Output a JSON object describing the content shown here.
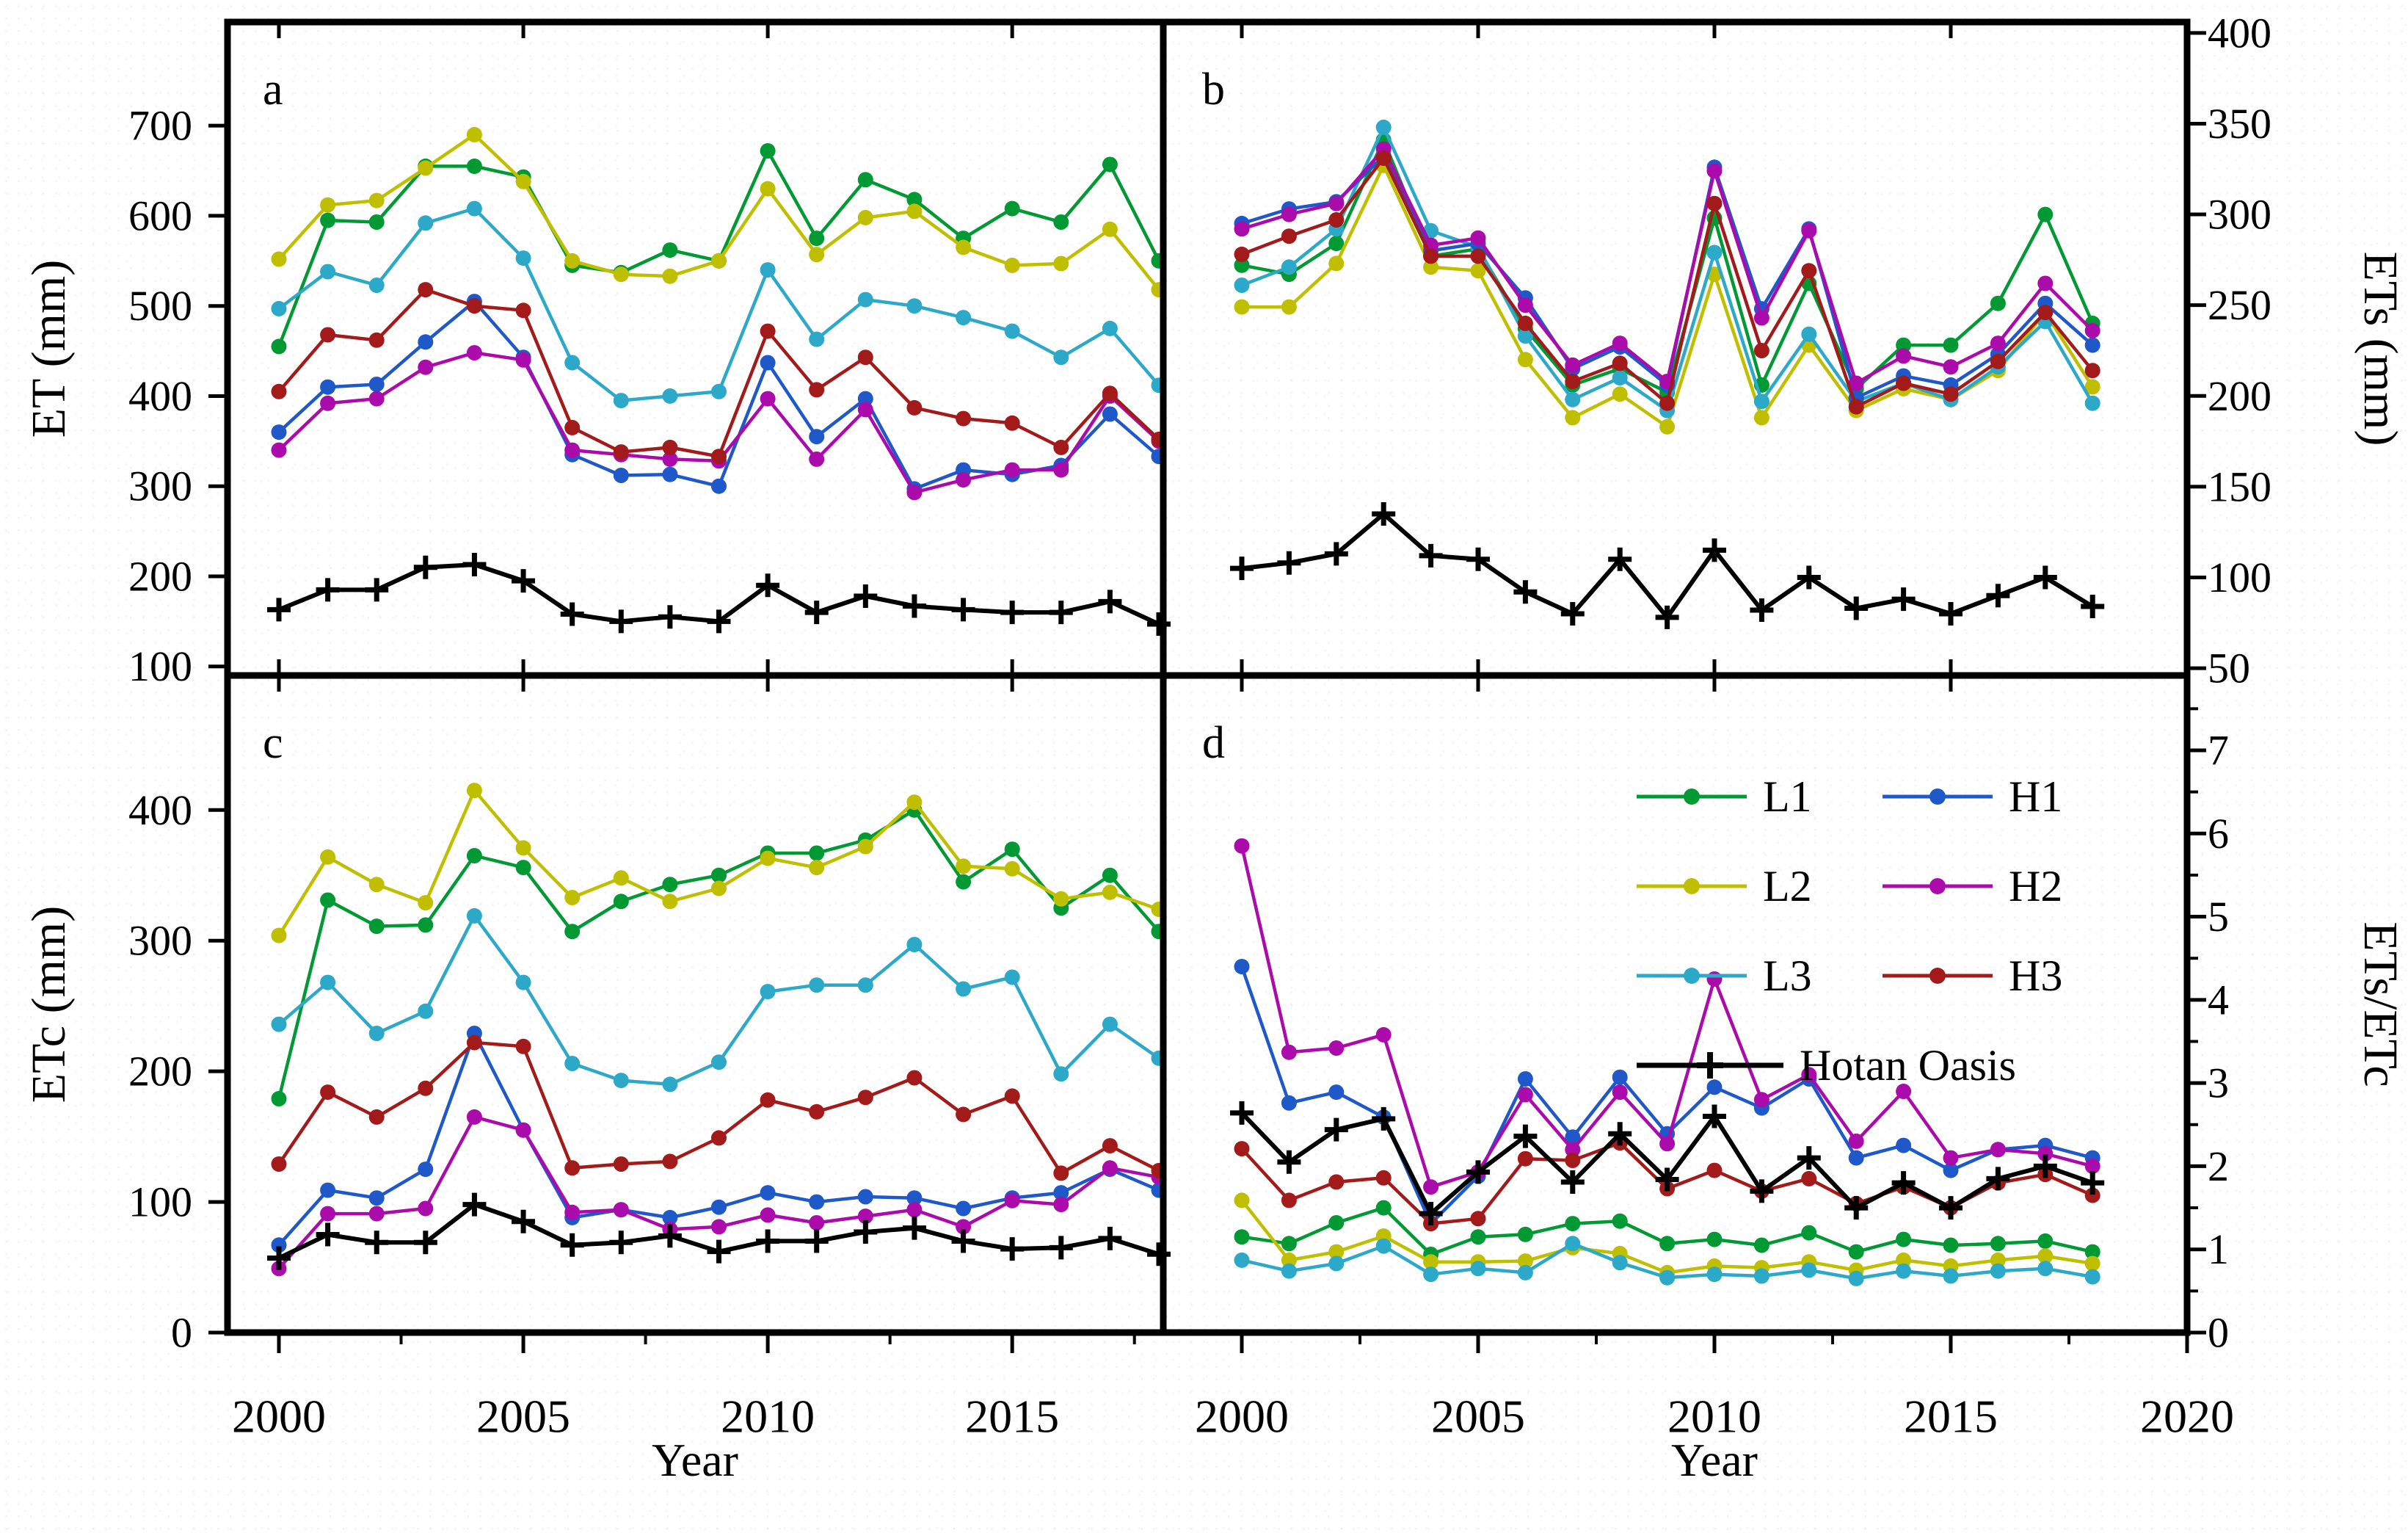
{
  "figure": {
    "panel_letters": {
      "a": "a",
      "b": "b",
      "c": "c",
      "d": "d"
    },
    "axis_titles": {
      "left_top": "ET (mm)",
      "right_top": "ETs (mm)",
      "left_bottom": "ETc (mm)",
      "right_bottom": "ETs/ETc",
      "x_left": "Year",
      "x_right": "Year"
    },
    "legend": {
      "items": [
        {
          "key": "L1",
          "label": "L1"
        },
        {
          "key": "H1",
          "label": "H1"
        },
        {
          "key": "L2",
          "label": "L2"
        },
        {
          "key": "H2",
          "label": "H2"
        },
        {
          "key": "L3",
          "label": "L3"
        },
        {
          "key": "H3",
          "label": "H3"
        },
        {
          "key": "HO",
          "label": "Hotan Oasis"
        }
      ]
    },
    "series_colors": {
      "L1": "#009933",
      "L2": "#BFBF00",
      "L3": "#2CA8C8",
      "H1": "#1F58C8",
      "H2": "#AA0BAA",
      "H3": "#A21A1A",
      "HO": "#000000"
    },
    "series_markers": {
      "L1": "circle",
      "L2": "circle",
      "L3": "circle",
      "H1": "circle",
      "H2": "circle",
      "H3": "circle",
      "HO": "plus"
    }
  },
  "chart_data": [
    {
      "id": "a",
      "type": "line",
      "title": "",
      "ylabel": "ET (mm)",
      "xlabel": "Year",
      "x": [
        2000,
        2001,
        2002,
        2003,
        2004,
        2005,
        2006,
        2007,
        2008,
        2009,
        2010,
        2011,
        2012,
        2013,
        2014,
        2015,
        2016,
        2017,
        2018
      ],
      "ylim": [
        100,
        700
      ],
      "yticks": [
        100,
        200,
        300,
        400,
        500,
        600,
        700
      ],
      "xticks": [
        2000,
        2005,
        2010,
        2015
      ],
      "legend_position": "none",
      "grid": false,
      "series": [
        {
          "name": "L1",
          "values": [
            455,
            595,
            593,
            655,
            655,
            643,
            545,
            537,
            562,
            550,
            672,
            575,
            640,
            618,
            575,
            608,
            593,
            657,
            550
          ]
        },
        {
          "name": "L2",
          "values": [
            552,
            612,
            617,
            653,
            690,
            638,
            550,
            535,
            533,
            550,
            630,
            557,
            598,
            605,
            565,
            545,
            547,
            585,
            518
          ]
        },
        {
          "name": "L3",
          "values": [
            497,
            538,
            523,
            592,
            608,
            553,
            437,
            395,
            400,
            405,
            540,
            463,
            507,
            500,
            487,
            472,
            443,
            475,
            412
          ]
        },
        {
          "name": "H1",
          "values": [
            360,
            410,
            413,
            460,
            505,
            443,
            335,
            312,
            313,
            300,
            437,
            355,
            397,
            297,
            318,
            313,
            323,
            380,
            333
          ]
        },
        {
          "name": "H2",
          "values": [
            340,
            392,
            397,
            432,
            448,
            440,
            340,
            335,
            330,
            328,
            397,
            330,
            385,
            293,
            307,
            318,
            318,
            400,
            350
          ]
        },
        {
          "name": "H3",
          "values": [
            405,
            468,
            462,
            518,
            500,
            495,
            365,
            338,
            343,
            333,
            472,
            407,
            443,
            387,
            375,
            370,
            343,
            403,
            352
          ]
        },
        {
          "name": "Hotan Oasis",
          "values": [
            163,
            185,
            185,
            210,
            213,
            195,
            158,
            150,
            155,
            150,
            190,
            160,
            178,
            167,
            163,
            160,
            160,
            172,
            147
          ]
        }
      ]
    },
    {
      "id": "b",
      "type": "line",
      "title": "",
      "ylabel": "ETs (mm)",
      "xlabel": "Year",
      "x": [
        2000,
        2001,
        2002,
        2003,
        2004,
        2005,
        2006,
        2007,
        2008,
        2009,
        2010,
        2011,
        2012,
        2013,
        2014,
        2015,
        2016,
        2017,
        2018
      ],
      "ylim": [
        50,
        400
      ],
      "yticks": [
        50,
        100,
        150,
        200,
        250,
        300,
        350,
        400
      ],
      "xticks": [
        2000,
        2005,
        2010,
        2015,
        2020
      ],
      "legend_position": "none",
      "grid": false,
      "series": [
        {
          "name": "L1",
          "values": [
            272,
            267,
            284,
            341,
            277,
            281,
            237,
            206,
            215,
            202,
            298,
            206,
            262,
            204,
            228,
            228,
            251,
            300,
            240
          ]
        },
        {
          "name": "L2",
          "values": [
            249,
            249,
            273,
            327,
            271,
            269,
            220,
            188,
            201,
            183,
            267,
            188,
            228,
            192,
            204,
            198,
            214,
            246,
            205
          ]
        },
        {
          "name": "L3",
          "values": [
            261,
            271,
            292,
            348,
            291,
            282,
            233,
            198,
            210,
            192,
            279,
            197,
            234,
            197,
            207,
            198,
            216,
            241,
            196
          ]
        },
        {
          "name": "H1",
          "values": [
            295,
            303,
            307,
            332,
            280,
            284,
            254,
            215,
            227,
            206,
            326,
            248,
            292,
            199,
            211,
            206,
            223,
            251,
            228
          ]
        },
        {
          "name": "H2",
          "values": [
            292,
            300,
            306,
            336,
            283,
            287,
            250,
            217,
            229,
            208,
            324,
            243,
            291,
            207,
            222,
            216,
            229,
            262,
            236
          ]
        },
        {
          "name": "H3",
          "values": [
            278,
            288,
            297,
            331,
            277,
            277,
            240,
            208,
            218,
            196,
            306,
            225,
            269,
            194,
            207,
            201,
            219,
            246,
            214
          ]
        },
        {
          "name": "Hotan Oasis",
          "values": [
            105,
            108,
            113,
            135,
            112,
            110,
            92,
            80,
            110,
            78,
            115,
            82,
            100,
            83,
            88,
            80,
            90,
            100,
            84
          ]
        }
      ]
    },
    {
      "id": "c",
      "type": "line",
      "title": "",
      "ylabel": "ETc (mm)",
      "xlabel": "Year",
      "x": [
        2000,
        2001,
        2002,
        2003,
        2004,
        2005,
        2006,
        2007,
        2008,
        2009,
        2010,
        2011,
        2012,
        2013,
        2014,
        2015,
        2016,
        2017,
        2018
      ],
      "ylim": [
        0,
        500
      ],
      "yticks": [
        0,
        100,
        200,
        300,
        400
      ],
      "xticks": [
        2000,
        2005,
        2010,
        2015
      ],
      "legend_position": "none",
      "grid": false,
      "series": [
        {
          "name": "L1",
          "values": [
            179,
            331,
            311,
            312,
            365,
            356,
            307,
            330,
            343,
            350,
            367,
            367,
            377,
            400,
            345,
            370,
            325,
            350,
            307
          ]
        },
        {
          "name": "L2",
          "values": [
            304,
            364,
            343,
            329,
            415,
            371,
            333,
            348,
            330,
            340,
            363,
            356,
            372,
            406,
            357,
            355,
            332,
            337,
            324
          ]
        },
        {
          "name": "L3",
          "values": [
            236,
            268,
            229,
            246,
            319,
            268,
            206,
            193,
            190,
            207,
            261,
            266,
            266,
            297,
            263,
            272,
            198,
            236,
            210
          ]
        },
        {
          "name": "H1",
          "values": [
            67,
            109,
            103,
            125,
            229,
            155,
            88,
            94,
            88,
            96,
            107,
            100,
            104,
            103,
            95,
            103,
            107,
            125,
            109
          ]
        },
        {
          "name": "H2",
          "values": [
            49,
            91,
            91,
            95,
            165,
            155,
            92,
            94,
            79,
            81,
            90,
            84,
            89,
            94,
            81,
            101,
            98,
            126,
            119
          ]
        },
        {
          "name": "H3",
          "values": [
            129,
            184,
            165,
            187,
            222,
            219,
            126,
            129,
            131,
            149,
            178,
            169,
            180,
            195,
            167,
            181,
            122,
            143,
            124
          ]
        },
        {
          "name": "Hotan Oasis",
          "values": [
            57,
            75,
            69,
            69,
            98,
            85,
            67,
            69,
            74,
            62,
            70,
            70,
            77,
            80,
            70,
            64,
            65,
            72,
            60
          ]
        }
      ]
    },
    {
      "id": "d",
      "type": "line",
      "title": "",
      "ylabel": "ETs/ETc",
      "xlabel": "Year",
      "x": [
        2000,
        2001,
        2002,
        2003,
        2004,
        2005,
        2006,
        2007,
        2008,
        2009,
        2010,
        2011,
        2012,
        2013,
        2014,
        2015,
        2016,
        2017,
        2018
      ],
      "ylim": [
        0,
        7
      ],
      "yticks": [
        0,
        1,
        2,
        3,
        4,
        5,
        6,
        7
      ],
      "xticks": [
        2000,
        2005,
        2010,
        2015,
        2020
      ],
      "legend_position": "upper right inside",
      "grid": false,
      "series": [
        {
          "name": "L1",
          "values": [
            1.15,
            1.07,
            1.32,
            1.5,
            0.94,
            1.15,
            1.18,
            1.31,
            1.34,
            1.07,
            1.12,
            1.05,
            1.2,
            0.97,
            1.12,
            1.05,
            1.07,
            1.1,
            0.97
          ]
        },
        {
          "name": "L2",
          "values": [
            1.59,
            0.87,
            0.97,
            1.16,
            0.85,
            0.85,
            0.86,
            1.02,
            0.95,
            0.72,
            0.8,
            0.78,
            0.85,
            0.75,
            0.87,
            0.8,
            0.87,
            0.92,
            0.83
          ]
        },
        {
          "name": "L3",
          "values": [
            0.87,
            0.74,
            0.83,
            1.04,
            0.7,
            0.77,
            0.72,
            1.07,
            0.84,
            0.66,
            0.7,
            0.68,
            0.75,
            0.65,
            0.74,
            0.68,
            0.74,
            0.77,
            0.67
          ]
        },
        {
          "name": "H1",
          "values": [
            4.4,
            2.76,
            2.89,
            2.59,
            1.31,
            1.88,
            3.05,
            2.35,
            3.07,
            2.39,
            2.95,
            2.7,
            3.05,
            2.1,
            2.25,
            1.95,
            2.2,
            2.25,
            2.1
          ]
        },
        {
          "name": "H2",
          "values": [
            5.85,
            3.37,
            3.42,
            3.58,
            1.75,
            1.93,
            2.86,
            2.2,
            2.89,
            2.27,
            4.25,
            2.8,
            3.1,
            2.3,
            2.9,
            2.1,
            2.2,
            2.15,
            2.0
          ]
        },
        {
          "name": "H3",
          "values": [
            2.21,
            1.59,
            1.81,
            1.86,
            1.31,
            1.37,
            2.09,
            2.07,
            2.28,
            1.73,
            1.95,
            1.7,
            1.85,
            1.55,
            1.75,
            1.5,
            1.8,
            1.9,
            1.65
          ]
        },
        {
          "name": "Hotan Oasis",
          "values": [
            2.64,
            2.05,
            2.44,
            2.57,
            1.43,
            1.93,
            2.36,
            1.81,
            2.39,
            1.84,
            2.6,
            1.7,
            2.1,
            1.5,
            1.8,
            1.5,
            1.85,
            2.0,
            1.8
          ]
        }
      ]
    }
  ]
}
